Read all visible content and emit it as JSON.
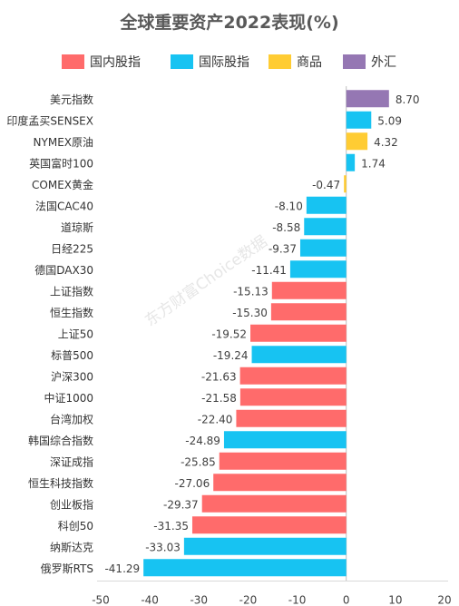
{
  "chart_data": {
    "type": "bar",
    "orientation": "horizontal",
    "title": "全球重要资产2022表现(%)",
    "legend": [
      {
        "name": "国内股指",
        "color": "#ff6b6b"
      },
      {
        "name": "国际股指",
        "color": "#17c3f2"
      },
      {
        "name": "商品",
        "color": "#ffcc33"
      },
      {
        "name": "外汇",
        "color": "#9577b3"
      }
    ],
    "categories": [
      "美元指数",
      "印度孟买SENSEX",
      "NYMEX原油",
      "英国富时100",
      "COMEX黄金",
      "法国CAC40",
      "道琼斯",
      "日经225",
      "德国DAX30",
      "上证指数",
      "恒生指数",
      "上证50",
      "标普500",
      "沪深300",
      "中证1000",
      "台湾加权",
      "韩国综合指数",
      "深证成指",
      "恒生科技指数",
      "创业板指",
      "科创50",
      "纳斯达克",
      "俄罗斯RTS"
    ],
    "values": [
      8.7,
      5.09,
      4.32,
      1.74,
      -0.47,
      -8.1,
      -8.58,
      -9.37,
      -11.41,
      -15.13,
      -15.3,
      -19.52,
      -19.24,
      -21.63,
      -21.58,
      -22.4,
      -24.89,
      -25.85,
      -27.06,
      -29.37,
      -31.35,
      -33.03,
      -41.29
    ],
    "value_labels": [
      "8.70",
      "5.09",
      "4.32",
      "1.74",
      "-0.47",
      "-8.10",
      "-8.58",
      "-9.37",
      "-11.41",
      "-15.13",
      "-15.30",
      "-19.52",
      "-19.24",
      "-21.63",
      "-21.58",
      "-22.40",
      "-24.89",
      "-25.85",
      "-27.06",
      "-29.37",
      "-31.35",
      "-33.03",
      "-41.29"
    ],
    "groups": [
      "外汇",
      "国际股指",
      "商品",
      "国际股指",
      "商品",
      "国际股指",
      "国际股指",
      "国际股指",
      "国际股指",
      "国内股指",
      "国内股指",
      "国内股指",
      "国际股指",
      "国内股指",
      "国内股指",
      "国内股指",
      "国际股指",
      "国内股指",
      "国内股指",
      "国内股指",
      "国内股指",
      "国际股指",
      "国际股指"
    ],
    "xlim": [
      -50,
      20
    ],
    "xticks": [
      -50,
      -40,
      -30,
      -20,
      -10,
      0,
      10,
      20
    ],
    "xtick_labels": [
      "-50",
      "-40",
      "-30",
      "-20",
      "-10",
      "0",
      "10",
      "20"
    ],
    "grid": false,
    "legend_position": "top"
  },
  "watermark": "东方财富Choice数据"
}
